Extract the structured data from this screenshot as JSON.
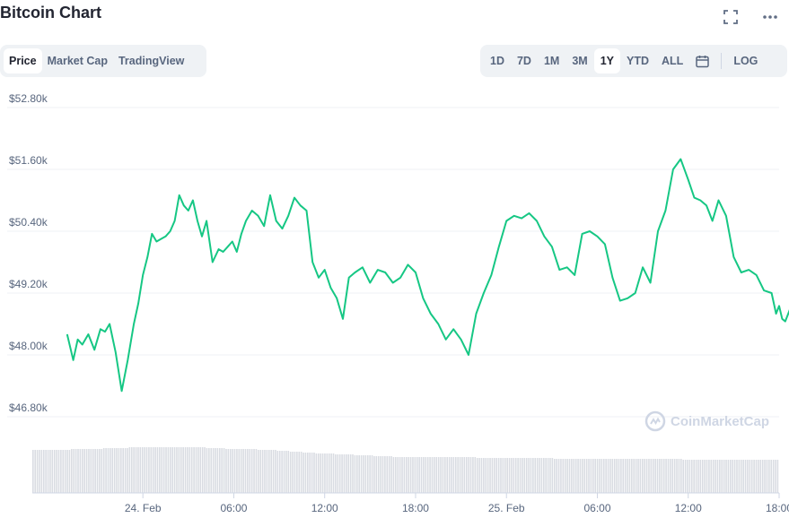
{
  "header": {
    "title": "Bitcoin Chart",
    "fullscreen_icon": "fullscreen-icon",
    "more_icon": "more-horizontal-icon"
  },
  "chart_tabs": [
    {
      "label": "Price",
      "active": true
    },
    {
      "label": "Market Cap",
      "active": false
    },
    {
      "label": "TradingView",
      "active": false
    }
  ],
  "range_buttons": [
    {
      "label": "1D",
      "active": false
    },
    {
      "label": "7D",
      "active": false
    },
    {
      "label": "1M",
      "active": false
    },
    {
      "label": "3M",
      "active": false
    },
    {
      "label": "1Y",
      "active": true
    },
    {
      "label": "YTD",
      "active": false
    },
    {
      "label": "ALL",
      "active": false
    }
  ],
  "calendar_icon": "calendar-icon",
  "log_label": "LOG",
  "watermark": "CoinMarketCap",
  "colors": {
    "line": "#16c784",
    "volume": "#d9dce2",
    "grid": "#eff2f5",
    "axis_text": "#58667e"
  },
  "chart_data": {
    "type": "line",
    "title": "Bitcoin Chart",
    "ylim": [
      46800,
      52800
    ],
    "y_ticks": [
      52800,
      51600,
      50400,
      49200,
      48000,
      46800
    ],
    "y_tick_labels": [
      "$52.80k",
      "$51.60k",
      "$50.40k",
      "$49.20k",
      "$48.00k",
      "$46.80k"
    ],
    "xlim": [
      -7.3,
      42.0
    ],
    "x_ticks": [
      0,
      6,
      12,
      18,
      24,
      30,
      36,
      42
    ],
    "x_tick_labels": [
      "24. Feb",
      "06:00",
      "12:00",
      "18:00",
      "25. Feb",
      "06:00",
      "12:00",
      "18:00"
    ],
    "grid": true,
    "series": [
      {
        "x": [
          -5.0,
          -4.6,
          -4.3,
          -4.0,
          -3.6,
          -3.2,
          -2.8,
          -2.5,
          -2.2,
          -1.8,
          -1.4,
          -1.0,
          -0.6,
          -0.3,
          0.0,
          0.3,
          0.6,
          0.9,
          1.2,
          1.5,
          1.8,
          2.1,
          2.4,
          2.7,
          3.0,
          3.3,
          3.6,
          3.9,
          4.2,
          4.6,
          5.0,
          5.3,
          5.6,
          5.9,
          6.2,
          6.5,
          6.8,
          7.2,
          7.6,
          8.0,
          8.4,
          8.8,
          9.2,
          9.6,
          10.0,
          10.4,
          10.8,
          11.2,
          11.6,
          12.0,
          12.4,
          12.8,
          13.2,
          13.6,
          14.0,
          14.5,
          15.0,
          15.5,
          16.0,
          16.5,
          17.0,
          17.5,
          18.0,
          18.5,
          19.0,
          19.5,
          20.0,
          20.5,
          21.0,
          21.5,
          22.0,
          22.5,
          23.0,
          23.5,
          24.0,
          24.5,
          25.0,
          25.5,
          26.0,
          26.5,
          27.0,
          27.5,
          28.0,
          28.5,
          29.0,
          29.5,
          30.0,
          30.5,
          31.0,
          31.5,
          32.0,
          32.5,
          33.0,
          33.5,
          34.0,
          34.5,
          35.0,
          35.5,
          36.0,
          36.4,
          36.8,
          37.2,
          37.6,
          38.0,
          38.5,
          39.0,
          39.5,
          40.0,
          40.5,
          41.0,
          41.5,
          41.8,
          42.0,
          42.2,
          42.4,
          42.8
        ],
        "y": [
          48400,
          47900,
          48300,
          48200,
          48400,
          48100,
          48500,
          48450,
          48600,
          48050,
          47300,
          47900,
          48600,
          49000,
          49550,
          49900,
          50350,
          50200,
          50250,
          50300,
          50400,
          50600,
          51100,
          50900,
          50800,
          51000,
          50600,
          50300,
          50600,
          49800,
          50050,
          50000,
          50100,
          50200,
          50000,
          50350,
          50600,
          50800,
          50700,
          50500,
          51100,
          50600,
          50450,
          50700,
          51050,
          50900,
          50800,
          49800,
          49500,
          49650,
          49300,
          49100,
          48700,
          49500,
          49600,
          49700,
          49400,
          49650,
          49600,
          49400,
          49500,
          49750,
          49600,
          49100,
          48800,
          48600,
          48300,
          48500,
          48300,
          48000,
          48800,
          49200,
          49550,
          50100,
          50600,
          50700,
          50650,
          50750,
          50600,
          50300,
          50100,
          49650,
          49700,
          49550,
          50350,
          50400,
          50300,
          50150,
          49500,
          49050,
          49100,
          49200,
          49700,
          49400,
          50400,
          50800,
          51600,
          51800,
          51400,
          51050,
          51000,
          50900,
          50600,
          51000,
          50700,
          49900,
          49600,
          49650,
          49550,
          49250,
          49200,
          48800,
          48950,
          48700,
          48650,
          48950
        ],
        "volume": [
          48,
          48,
          48,
          48,
          48,
          48,
          49,
          49,
          49,
          49,
          49,
          50,
          50,
          50,
          50,
          51,
          51,
          51,
          51,
          51,
          51,
          51,
          51,
          51,
          51,
          51,
          51,
          50,
          50,
          50,
          49,
          49,
          49,
          49,
          49,
          48,
          48,
          48,
          47,
          47,
          46,
          46,
          45,
          45,
          44,
          44,
          44,
          43,
          43,
          43,
          42,
          42,
          42,
          41,
          41,
          41,
          40,
          40,
          40,
          40,
          40,
          40,
          40,
          40,
          40,
          40,
          40,
          40,
          40,
          39,
          39,
          39,
          39,
          39,
          39,
          39,
          39,
          39,
          39,
          39,
          39,
          38,
          38,
          38,
          38,
          38,
          38,
          38,
          38,
          38,
          38,
          38,
          38,
          38,
          38,
          38,
          38,
          38,
          38,
          38,
          38,
          37,
          37,
          37,
          37,
          37,
          37,
          37,
          37,
          37,
          37,
          37,
          37,
          37,
          37,
          37
        ]
      }
    ]
  }
}
